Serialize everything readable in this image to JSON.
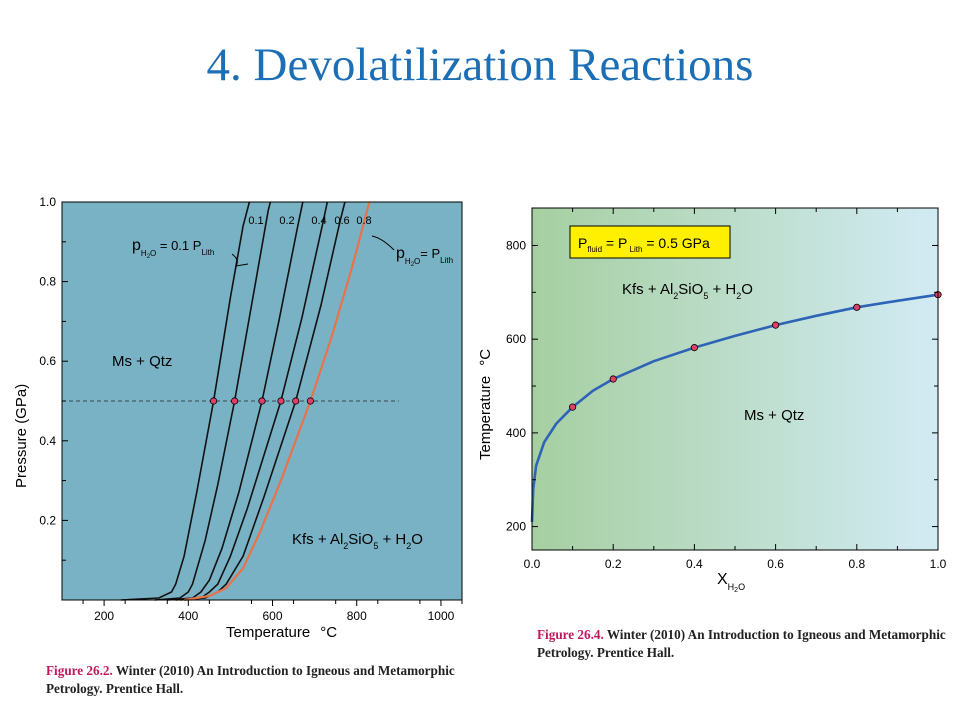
{
  "slide": {
    "title": "4. Devolatilization Reactions"
  },
  "colors": {
    "title": "#1c6fb4",
    "fig1_background": "#7ab2c5",
    "sat_curve": "#e8724a",
    "isopleths": "#111111",
    "points": "#e04068",
    "fig2_curve": "#2e63b6",
    "fig2_grad_left": "#a6cfa1",
    "fig2_grad_right": "#d2ebf4",
    "legend_box": "#ffef00",
    "caption_number": "#c0185e"
  },
  "captions": [
    {
      "number": "Figure 26.2.",
      "text": " Winter (2010) An Introduction to Igneous and Metamorphic Petrology. Prentice Hall."
    },
    {
      "number": "Figure 26.4.",
      "text": " Winter (2010) An Introduction to Igneous and Metamorphic Petrology. Prentice Hall."
    }
  ],
  "chart_data": [
    {
      "type": "line",
      "xlabel": "Temperature",
      "xlabel_unit": "°C",
      "ylabel": "Pressure (GPa)",
      "xlim": [
        100,
        1050
      ],
      "ylim": [
        0,
        1.0
      ],
      "x_ticks": [
        200,
        400,
        600,
        800,
        1000
      ],
      "y_ticks": [
        0.2,
        0.4,
        0.6,
        0.8,
        1.0
      ],
      "y_tick_labels": [
        "0.2",
        "0.4",
        "0.6",
        "0.8",
        "1.0"
      ],
      "grid": false,
      "field_labels": [
        {
          "text": "Ms + Qtz"
        },
        {
          "text": "Kfs + Al",
          "sub1": "2",
          "mid": "SiO",
          "sub2": "5",
          "mid2": " + H",
          "sub3": "2",
          "end": "O"
        }
      ],
      "annotations": [
        {
          "main": "p",
          "sub": "H",
          "subsub": "2",
          "subend": "O",
          "rest": " = 0.1 P",
          "restsub": "Lith"
        },
        {
          "main": "p",
          "sub": "H",
          "subsub": "2",
          "subend": "O",
          "rest": "= P",
          "restsub": "Lith"
        }
      ],
      "reference_line": {
        "y": 0.5,
        "x_range": [
          0,
          900
        ],
        "style": "dashed"
      },
      "series": [
        {
          "label": "0.1",
          "color": "#111111",
          "points": [
            [
              240,
              0
            ],
            [
              330,
              0.005
            ],
            [
              360,
              0.02
            ],
            [
              370,
              0.04
            ],
            [
              390,
              0.11
            ],
            [
              420,
              0.27
            ],
            [
              460,
              0.5
            ],
            [
              500,
              0.76
            ],
            [
              530,
              0.94
            ],
            [
              545,
              1.0
            ]
          ]
        },
        {
          "label": "0.2",
          "color": "#111111",
          "points": [
            [
              320,
              0
            ],
            [
              380,
              0.005
            ],
            [
              400,
              0.02
            ],
            [
              410,
              0.04
            ],
            [
              440,
              0.15
            ],
            [
              470,
              0.29
            ],
            [
              510,
              0.5
            ],
            [
              560,
              0.8
            ],
            [
              590,
              0.98
            ],
            [
              595,
              1.0
            ]
          ]
        },
        {
          "label": "0.4",
          "color": "#111111",
          "points": [
            [
              350,
              0
            ],
            [
              410,
              0.005
            ],
            [
              430,
              0.02
            ],
            [
              450,
              0.05
            ],
            [
              480,
              0.13
            ],
            [
              520,
              0.27
            ],
            [
              575,
              0.5
            ],
            [
              615,
              0.7
            ],
            [
              660,
              0.94
            ],
            [
              672,
              1.0
            ]
          ]
        },
        {
          "label": "0.6",
          "color": "#111111",
          "points": [
            [
              370,
              0
            ],
            [
              430,
              0.005
            ],
            [
              450,
              0.02
            ],
            [
              470,
              0.04
            ],
            [
              500,
              0.11
            ],
            [
              540,
              0.23
            ],
            [
              620,
              0.5
            ],
            [
              670,
              0.71
            ],
            [
              720,
              0.95
            ],
            [
              730,
              1.0
            ]
          ]
        },
        {
          "label": "0.8",
          "color": "#111111",
          "points": [
            [
              380,
              0
            ],
            [
              440,
              0.005
            ],
            [
              470,
              0.02
            ],
            [
              490,
              0.04
            ],
            [
              530,
              0.11
            ],
            [
              580,
              0.26
            ],
            [
              655,
              0.5
            ],
            [
              715,
              0.74
            ],
            [
              760,
              0.95
            ],
            [
              772,
              1.0
            ]
          ]
        },
        {
          "label": "",
          "color": "#e8724a",
          "points": [
            [
              390,
              0
            ],
            [
              450,
              0.01
            ],
            [
              490,
              0.03
            ],
            [
              530,
              0.08
            ],
            [
              570,
              0.17
            ],
            [
              620,
              0.3
            ],
            [
              690,
              0.5
            ],
            [
              740,
              0.66
            ],
            [
              790,
              0.84
            ],
            [
              830,
              1.0
            ]
          ]
        }
      ],
      "points": [
        [
          460,
          0.5
        ],
        [
          510,
          0.5
        ],
        [
          575,
          0.5
        ],
        [
          620,
          0.5
        ],
        [
          655,
          0.5
        ],
        [
          690,
          0.5
        ]
      ]
    },
    {
      "type": "line",
      "xlabel": "X",
      "xlabel_sub": "H",
      "xlabel_subsub": "2",
      "xlabel_subend": "O",
      "ylabel": "Temperature",
      "ylabel_unit": "°C",
      "xlim": [
        0,
        1.0
      ],
      "ylim": [
        150,
        880
      ],
      "x_ticks": [
        0,
        0.2,
        0.4,
        0.6,
        0.8,
        1.0
      ],
      "x_tick_labels": [
        "0.0",
        "0.2",
        "0.4",
        "0.6",
        "0.8",
        "1.0"
      ],
      "y_ticks": [
        200,
        400,
        600,
        800
      ],
      "grid": false,
      "legend_box": {
        "p1": "P",
        "p1sub": "fluid",
        "eq1": " = P",
        "p2sub": " Lith",
        "eq2": " = 0.5 GPa"
      },
      "field_labels": [
        {
          "text": "Kfs + Al",
          "sub1": "2",
          "mid": "SiO",
          "sub2": "5",
          "mid2": " + H",
          "sub3": "2",
          "end": "O"
        },
        {
          "text": "Ms + Qtz"
        }
      ],
      "series": [
        {
          "label": "",
          "color": "#2e63b6",
          "points": [
            [
              0,
              210
            ],
            [
              0.003,
              280
            ],
            [
              0.01,
              330
            ],
            [
              0.03,
              380
            ],
            [
              0.06,
              420
            ],
            [
              0.1,
              455
            ],
            [
              0.15,
              490
            ],
            [
              0.2,
              515
            ],
            [
              0.3,
              553
            ],
            [
              0.4,
              582
            ],
            [
              0.5,
              607
            ],
            [
              0.6,
              630
            ],
            [
              0.7,
              650
            ],
            [
              0.8,
              668
            ],
            [
              0.9,
              682
            ],
            [
              1.0,
              695
            ]
          ]
        }
      ],
      "points": [
        [
          0.1,
          455
        ],
        [
          0.2,
          515
        ],
        [
          0.4,
          582
        ],
        [
          0.6,
          630
        ],
        [
          0.8,
          668
        ],
        [
          1.0,
          695
        ]
      ]
    }
  ]
}
